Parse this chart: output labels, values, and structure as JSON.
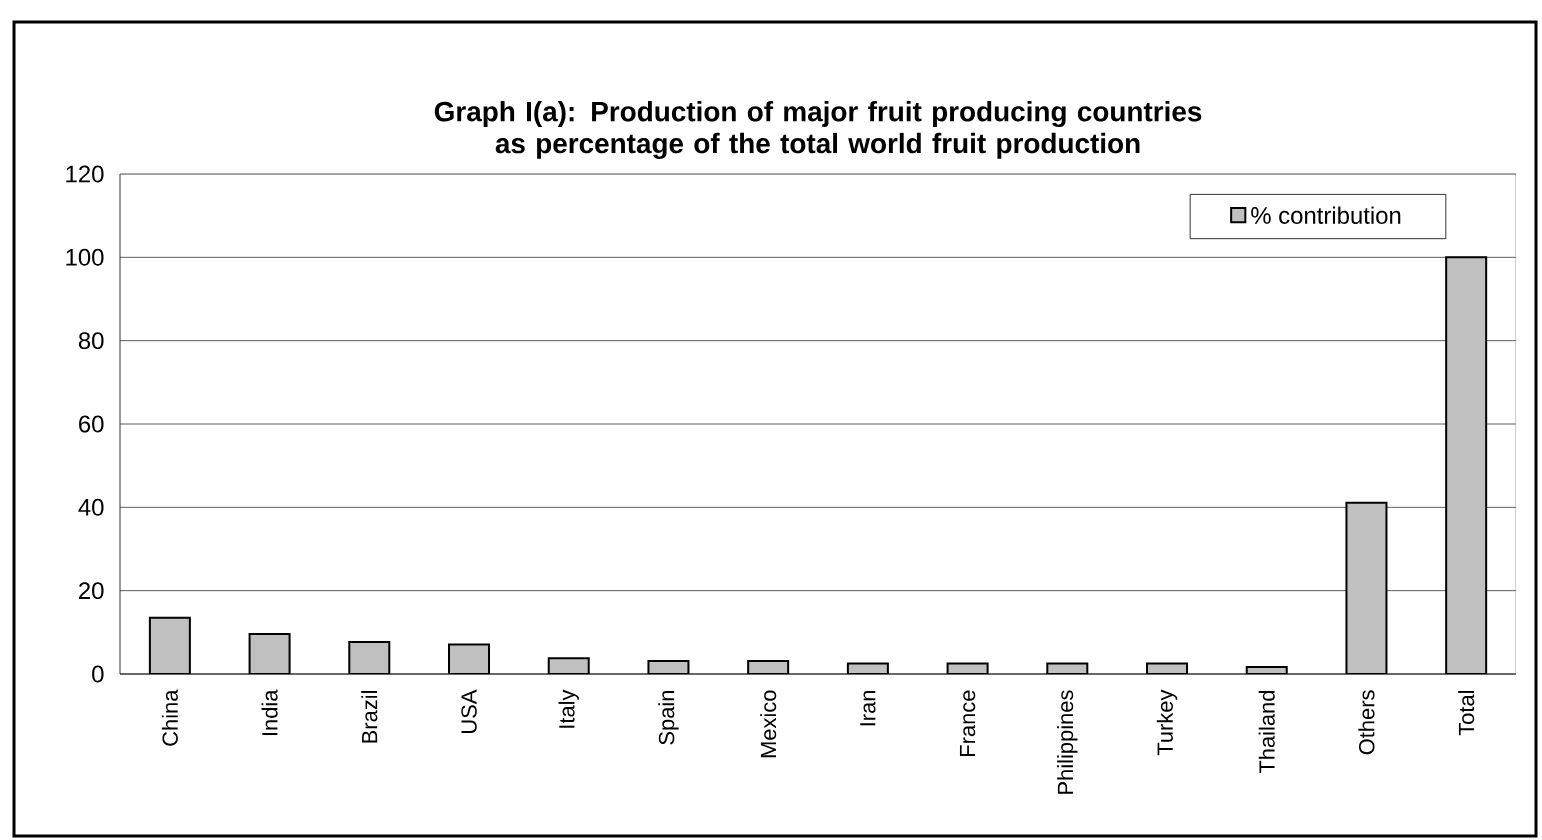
{
  "chart_data": {
    "type": "bar",
    "title": "Graph I(a): Production of major fruit producing countries as percentage of the total world fruit production",
    "categories": [
      "China",
      "India",
      "Brazil",
      "USA",
      "Italy",
      "Spain",
      "Mexico",
      "Iran",
      "France",
      "Philippines",
      "Turkey",
      "Thailand",
      "Others",
      "Total"
    ],
    "series": [
      {
        "name": "% contribution",
        "color": "#c0c0c0",
        "values": [
          13.5,
          9.6,
          7.7,
          7.1,
          3.8,
          3.1,
          3.1,
          2.5,
          2.5,
          2.5,
          2.5,
          1.7,
          41.1,
          100
        ]
      }
    ],
    "ylim": [
      0,
      120
    ],
    "yticks": [
      0,
      20,
      40,
      60,
      80,
      100,
      120
    ],
    "grid": "y",
    "legend": "top right"
  }
}
